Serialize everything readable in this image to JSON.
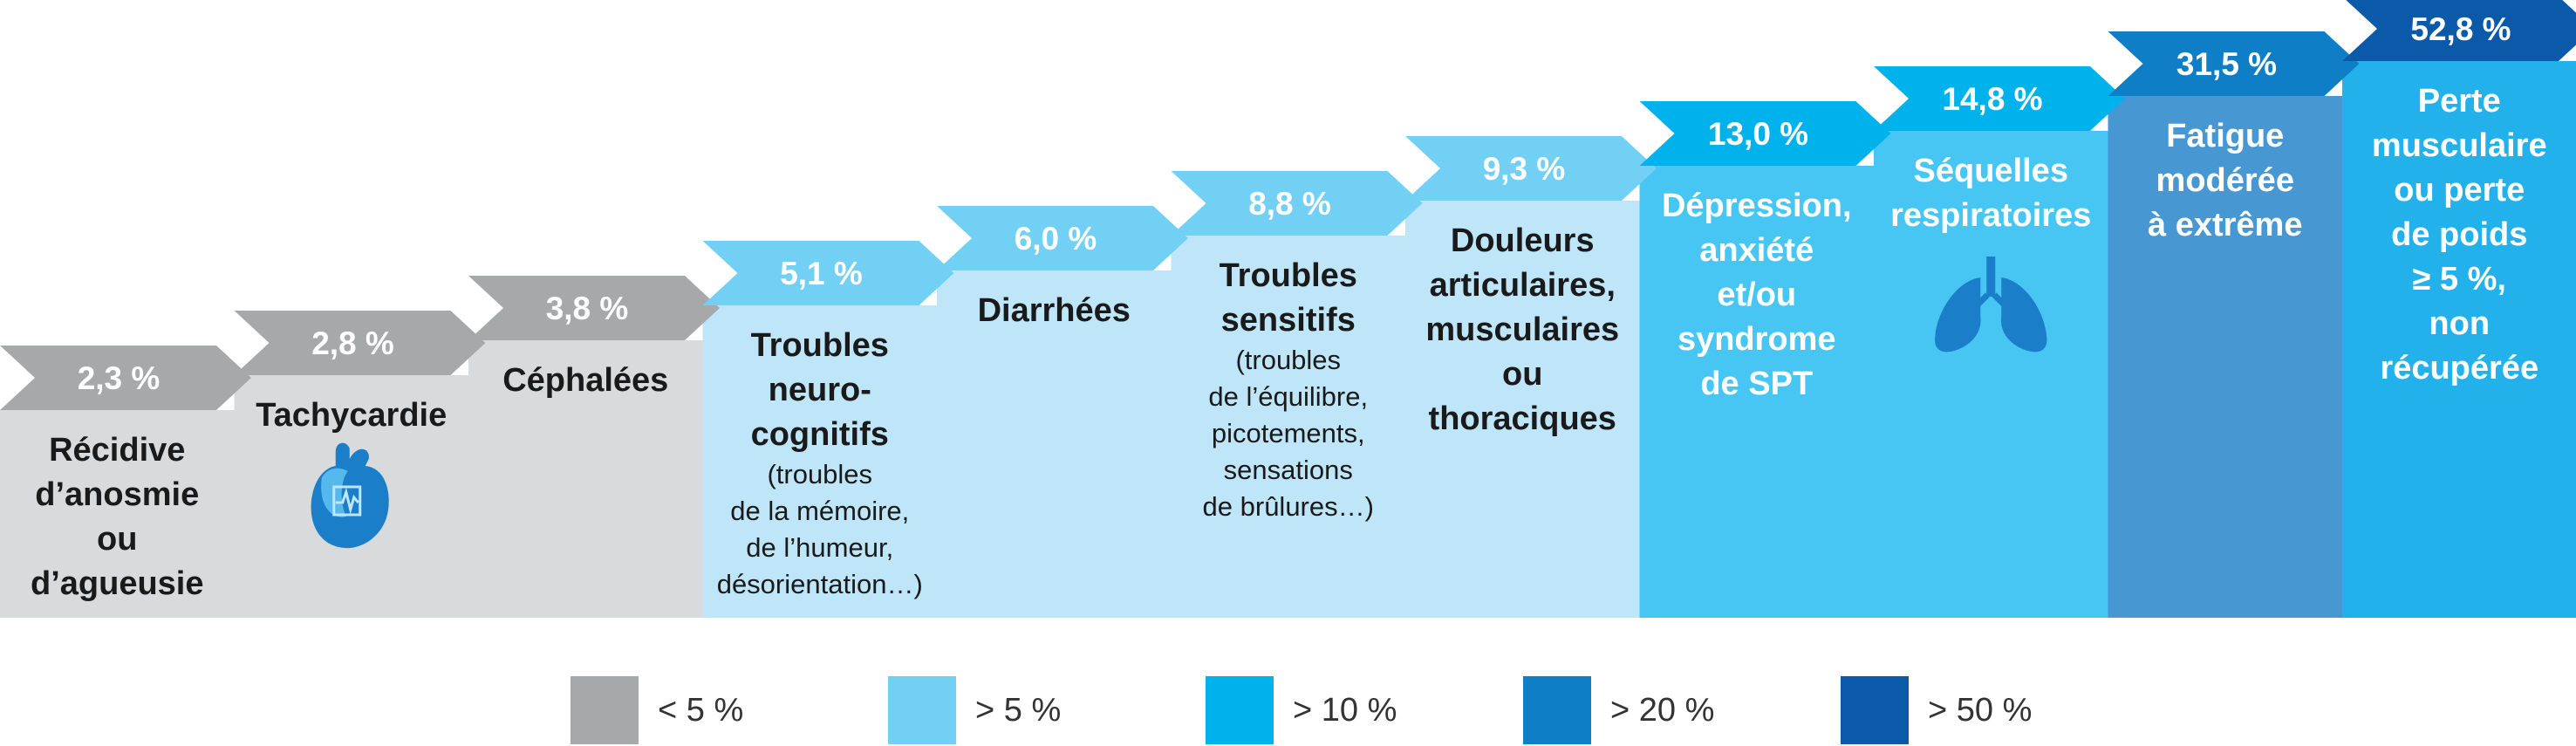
{
  "chart_data": {
    "type": "bar",
    "categories": [
      "Récidive d’anosmie ou d’agueusie",
      "Tachycardie",
      "Céphalées",
      "Troubles neuro-cognitifs (troubles de la mémoire, de l’humeur, désorientation…)",
      "Diarrhées",
      "Troubles sensitifs (troubles de l’équilibre, picotements, sensations de brûlures…)",
      "Douleurs articulaires, musculaires ou thoraciques",
      "Dépression, anxiété et/ou syndrome de SPT",
      "Séquelles respiratoires",
      "Fatigue modérée à extrême",
      "Perte musculaire ou perte de poids ≥ 5 %, non récupérée"
    ],
    "values": [
      2.3,
      2.8,
      3.8,
      5.1,
      6.0,
      8.8,
      9.3,
      13.0,
      14.8,
      31.5,
      52.8
    ],
    "value_labels": [
      "2,3 %",
      "2,8 %",
      "3,8 %",
      "5,1 %",
      "6,0 %",
      "8,8 %",
      "9,3 %",
      "13,0 %",
      "14,8 %",
      "31,5 %",
      "52,8 %"
    ],
    "legend_placement": "bottom",
    "grid": false
  },
  "bars": [
    {
      "value_label": "2,3 %",
      "tier": 0,
      "icon": null,
      "label_lines": [
        {
          "t": "Récidive",
          "b": true
        },
        {
          "t": "d’anosmie",
          "b": true
        },
        {
          "t": "ou",
          "b": true
        },
        {
          "t": "d’agueusie",
          "b": true
        }
      ]
    },
    {
      "value_label": "2,8 %",
      "tier": 0,
      "icon": "heart-icon",
      "label_lines": [
        {
          "t": "Tachycardie",
          "b": true
        }
      ]
    },
    {
      "value_label": "3,8 %",
      "tier": 0,
      "icon": null,
      "label_lines": [
        {
          "t": "Céphalées",
          "b": true
        }
      ]
    },
    {
      "value_label": "5,1 %",
      "tier": 1,
      "icon": null,
      "label_lines": [
        {
          "t": "Troubles",
          "b": true
        },
        {
          "t": "neuro-",
          "b": true
        },
        {
          "t": "cognitifs",
          "b": true
        },
        {
          "t": "(troubles",
          "b": false
        },
        {
          "t": "de la mémoire,",
          "b": false
        },
        {
          "t": "de l’humeur,",
          "b": false
        },
        {
          "t": "désorientation…)",
          "b": false
        }
      ]
    },
    {
      "value_label": "6,0 %",
      "tier": 1,
      "icon": null,
      "label_lines": [
        {
          "t": "Diarrhées",
          "b": true
        }
      ]
    },
    {
      "value_label": "8,8 %",
      "tier": 1,
      "icon": null,
      "label_lines": [
        {
          "t": "Troubles",
          "b": true
        },
        {
          "t": "sensitifs",
          "b": true
        },
        {
          "t": "(troubles",
          "b": false
        },
        {
          "t": "de l’équilibre,",
          "b": false
        },
        {
          "t": "picotements,",
          "b": false
        },
        {
          "t": "sensations",
          "b": false
        },
        {
          "t": "de brûlures…)",
          "b": false
        }
      ]
    },
    {
      "value_label": "9,3 %",
      "tier": 1,
      "icon": null,
      "label_lines": [
        {
          "t": "Douleurs",
          "b": true
        },
        {
          "t": "articulaires,",
          "b": true
        },
        {
          "t": "musculaires",
          "b": true
        },
        {
          "t": "ou",
          "b": true
        },
        {
          "t": "thoraciques",
          "b": true
        }
      ]
    },
    {
      "value_label": "13,0 %",
      "tier": 2,
      "icon": null,
      "label_lines": [
        {
          "t": "Dépression,",
          "b": true
        },
        {
          "t": "anxiété",
          "b": true
        },
        {
          "t": "et/ou",
          "b": true
        },
        {
          "t": "syndrome",
          "b": true
        },
        {
          "t": "de SPT",
          "b": true
        }
      ]
    },
    {
      "value_label": "14,8 %",
      "tier": 2,
      "icon": "lungs-icon",
      "label_lines": [
        {
          "t": "Séquelles",
          "b": true
        },
        {
          "t": "respiratoires",
          "b": true
        }
      ]
    },
    {
      "value_label": "31,5 %",
      "tier": 3,
      "icon": null,
      "label_lines": [
        {
          "t": "Fatigue",
          "b": true
        },
        {
          "t": "modérée",
          "b": true
        },
        {
          "t": "à extrême",
          "b": true
        }
      ]
    },
    {
      "value_label": "52,8 %",
      "tier": 4,
      "icon": null,
      "label_lines": [
        {
          "t": "Perte",
          "b": true
        },
        {
          "t": "musculaire",
          "b": true
        },
        {
          "t": "ou perte",
          "b": true
        },
        {
          "t": "de poids",
          "b": true
        },
        {
          "t": "≥ 5 %,",
          "b": true
        },
        {
          "t": "non",
          "b": true
        },
        {
          "t": "récupérée",
          "b": true
        }
      ]
    }
  ],
  "tiers": [
    {
      "label": "< 5 %",
      "swatch": "#a7a8aa",
      "arrow": "#a7a8aa",
      "bar": "#d9dadb",
      "text": "#1a1a1a",
      "tag_text": "#ffffff"
    },
    {
      "label": "> 5 %",
      "swatch": "#72d0f4",
      "arrow": "#72d0f4",
      "bar": "#bee6f8",
      "text": "#1a1a1a",
      "tag_text": "#ffffff"
    },
    {
      "label": "> 10 %",
      "swatch": "#00b2ec",
      "arrow": "#00b2ec",
      "bar": "#47c6f3",
      "text": "#ffffff",
      "tag_text": "#ffffff"
    },
    {
      "label": "> 20 %",
      "swatch": "#0e7fc6",
      "arrow": "#0e7fc6",
      "bar": "#4797d3",
      "text": "#ffffff",
      "tag_text": "#ffffff"
    },
    {
      "label": "> 50 %",
      "swatch": "#0b5aaa",
      "arrow": "#0b5aaa",
      "bar": "#22b1eb",
      "text": "#ffffff",
      "tag_text": "#ffffff"
    }
  ]
}
